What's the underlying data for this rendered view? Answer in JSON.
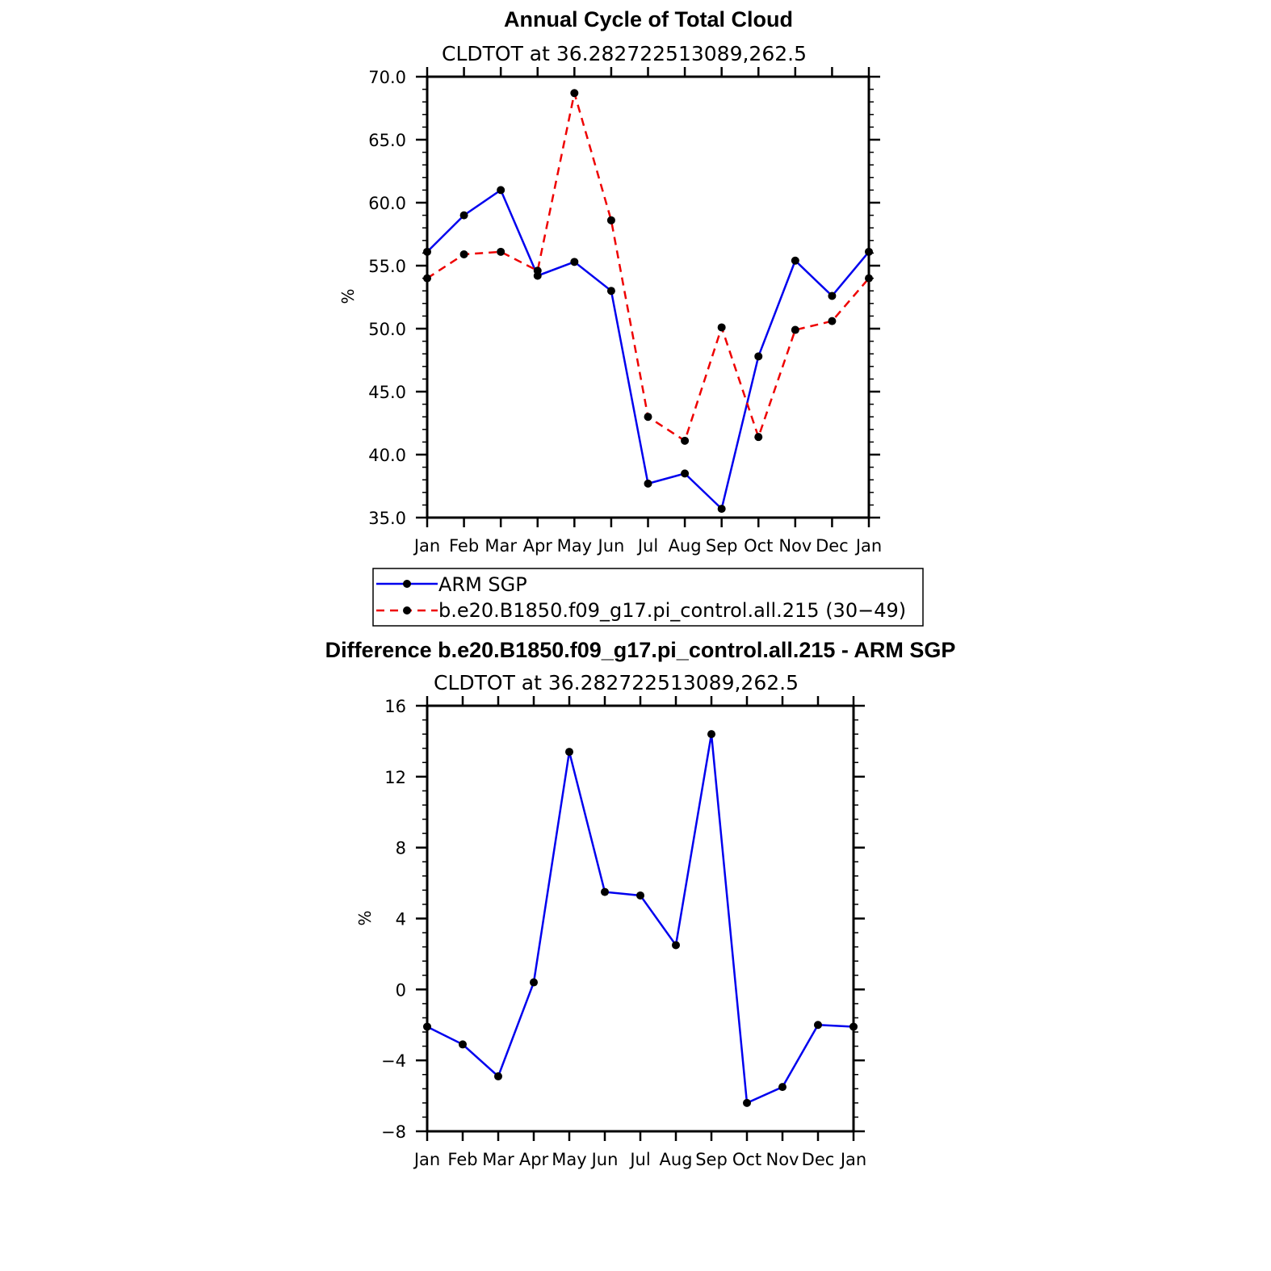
{
  "chart_data": [
    {
      "type": "line",
      "title": "Annual Cycle of Total Cloud",
      "subtitle": "CLDTOT at 36.282722513089,262.5",
      "ylabel": "%",
      "ylim": [
        35,
        70
      ],
      "yticks": [
        "35.0",
        "40.0",
        "45.0",
        "50.0",
        "55.0",
        "60.0",
        "65.0",
        "70.0"
      ],
      "ytick_values": [
        35,
        40,
        45,
        50,
        55,
        60,
        65,
        70
      ],
      "categories": [
        "Jan",
        "Feb",
        "Mar",
        "Apr",
        "May",
        "Jun",
        "Jul",
        "Aug",
        "Sep",
        "Oct",
        "Nov",
        "Dec",
        "Jan"
      ],
      "series": [
        {
          "name": "ARM SGP",
          "color": "#0000ee",
          "dash": "solid",
          "values": [
            56.1,
            59.0,
            61.0,
            54.2,
            55.3,
            53.0,
            37.7,
            38.5,
            35.7,
            47.8,
            55.4,
            52.6,
            56.1
          ]
        },
        {
          "name": "b.e20.B1850.f09_g17.pi_control.all.215 (30-49)",
          "color": "#ee0000",
          "dash": "dashed",
          "values": [
            54.0,
            55.9,
            56.1,
            54.6,
            68.7,
            58.6,
            43.0,
            41.1,
            50.1,
            41.4,
            49.9,
            50.6,
            54.0
          ]
        }
      ],
      "legend": {
        "placement": "bottom",
        "entries": [
          "ARM SGP",
          "b.e20.B1850.f09_g17.pi_control.all.215 (30−49)"
        ]
      }
    },
    {
      "type": "line",
      "title": "Difference b.e20.B1850.f09_g17.pi_control.all.215 - ARM SGP",
      "subtitle": "CLDTOT at 36.282722513089,262.5",
      "ylabel": "%",
      "ylim": [
        -8,
        16
      ],
      "yticks": [
        "−8",
        "−4",
        "0",
        "4",
        "8",
        "12",
        "16"
      ],
      "ytick_values": [
        -8,
        -4,
        0,
        4,
        8,
        12,
        16
      ],
      "categories": [
        "Jan",
        "Feb",
        "Mar",
        "Apr",
        "May",
        "Jun",
        "Jul",
        "Aug",
        "Sep",
        "Oct",
        "Nov",
        "Dec",
        "Jan"
      ],
      "series": [
        {
          "color": "#0000ee",
          "dash": "solid",
          "values": [
            -2.1,
            -3.1,
            -4.9,
            0.4,
            13.4,
            5.5,
            5.3,
            2.5,
            14.4,
            -6.4,
            -5.5,
            -2.0,
            -2.1
          ]
        }
      ]
    }
  ]
}
